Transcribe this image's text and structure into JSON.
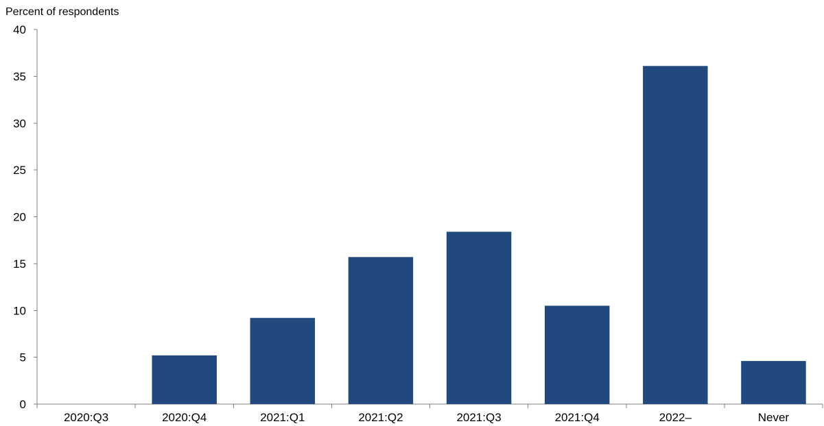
{
  "chart_data": {
    "type": "bar",
    "ylabel": "Percent of respondents",
    "categories": [
      "2020:Q3",
      "2020:Q4",
      "2021:Q1",
      "2021:Q2",
      "2021:Q3",
      "2021:Q4",
      "2022–",
      "Never"
    ],
    "values": [
      0,
      5.2,
      9.2,
      15.7,
      18.4,
      10.5,
      36.1,
      4.6
    ],
    "ylim": [
      0,
      40
    ],
    "yticks": [
      0,
      5,
      10,
      15,
      20,
      25,
      30,
      35,
      40
    ],
    "grid": false,
    "legend": "none",
    "bar_color": "#21497d"
  }
}
